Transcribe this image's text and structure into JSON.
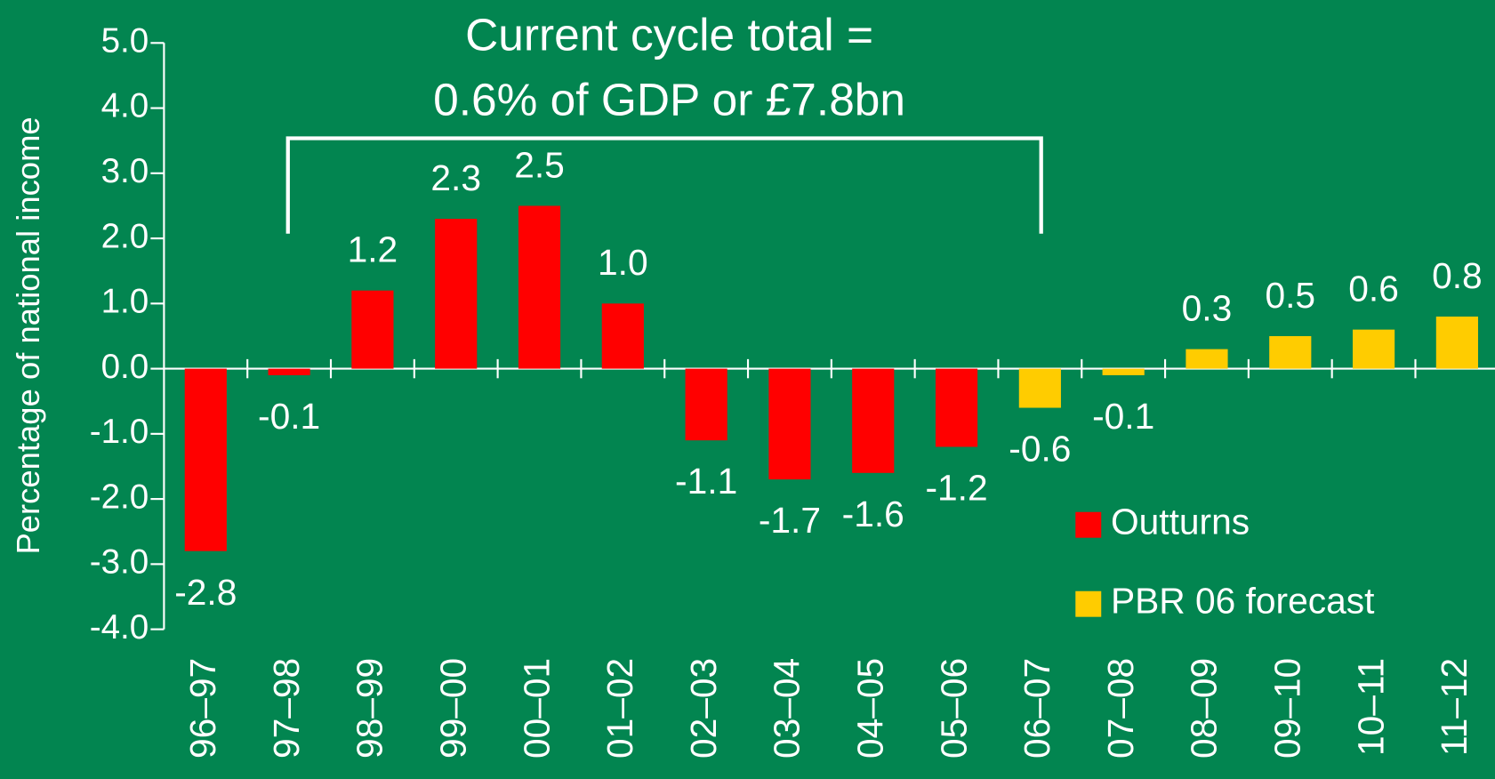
{
  "chart_data": {
    "type": "bar",
    "annotations": [
      "Current cycle total =",
      "0.6% of GDP or £7.8bn"
    ],
    "y_label": "Percentage of national income",
    "categories": [
      "96–97",
      "97–98",
      "98–99",
      "99–00",
      "00–01",
      "01–02",
      "02–03",
      "03–04",
      "04–05",
      "05–06",
      "06–07",
      "07–08",
      "08–09",
      "09–10",
      "10–11",
      "11–12"
    ],
    "series": [
      {
        "name": "Outturns",
        "color": "#ff0000",
        "values": [
          -2.8,
          -0.1,
          1.2,
          2.3,
          2.5,
          1.0,
          -1.1,
          -1.7,
          -1.6,
          -1.2,
          null,
          null,
          null,
          null,
          null,
          null
        ],
        "value_labels": [
          "-2.8",
          "-0.1",
          "1.2",
          "2.3",
          "2.5",
          "1.0",
          "-1.1",
          "-1.7",
          "-1.6",
          "-1.2",
          null,
          null,
          null,
          null,
          null,
          null
        ]
      },
      {
        "name": "PBR 06 forecast",
        "color": "#ffcc00",
        "values": [
          null,
          null,
          null,
          null,
          null,
          null,
          null,
          null,
          null,
          null,
          -0.6,
          -0.1,
          0.3,
          0.5,
          0.6,
          0.8
        ],
        "value_labels": [
          null,
          null,
          null,
          null,
          null,
          null,
          null,
          null,
          null,
          null,
          "-0.6",
          "-0.1",
          "0.3",
          "0.5",
          "0.6",
          "0.8"
        ]
      }
    ],
    "ylim": [
      -4,
      5
    ],
    "yticks": [
      {
        "value": -4,
        "label": "-4.0"
      },
      {
        "value": -3,
        "label": "-3.0"
      },
      {
        "value": -2,
        "label": "-2.0"
      },
      {
        "value": -1,
        "label": "-1.0"
      },
      {
        "value": 0,
        "label": "0.0"
      },
      {
        "value": 1,
        "label": "1.0"
      },
      {
        "value": 2,
        "label": "2.0"
      },
      {
        "value": 3,
        "label": "3.0"
      },
      {
        "value": 4,
        "label": "4.0"
      },
      {
        "value": 5,
        "label": "5.0"
      }
    ],
    "legend": "lower right"
  }
}
